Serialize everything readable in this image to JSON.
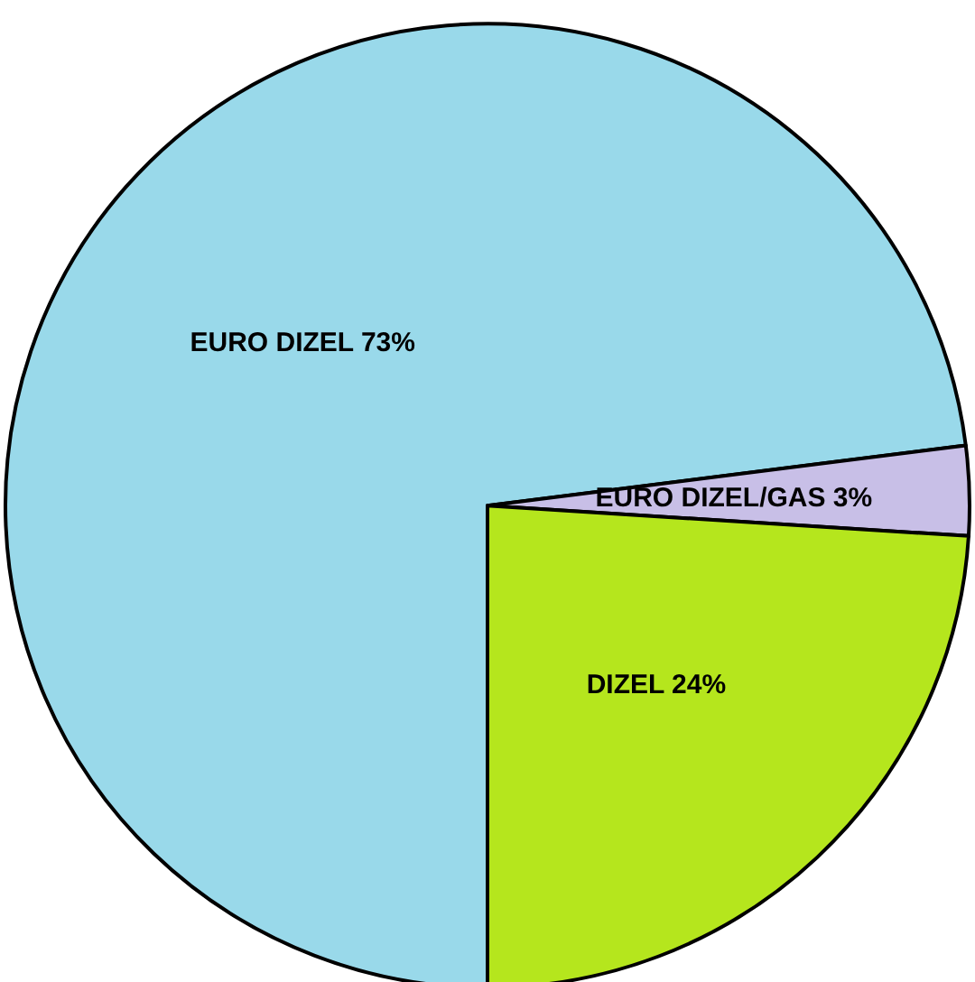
{
  "chart_data": {
    "type": "pie",
    "categories": [
      "EURO DIZEL",
      "EURO DIZEL/GAS",
      "DIZEL"
    ],
    "values": [
      73,
      3,
      24
    ],
    "value_labels": [
      "73%",
      "3%",
      "24%"
    ],
    "colors": [
      "#99d9ea",
      "#c8bfe7",
      "#b5e61d"
    ],
    "legend": false
  }
}
